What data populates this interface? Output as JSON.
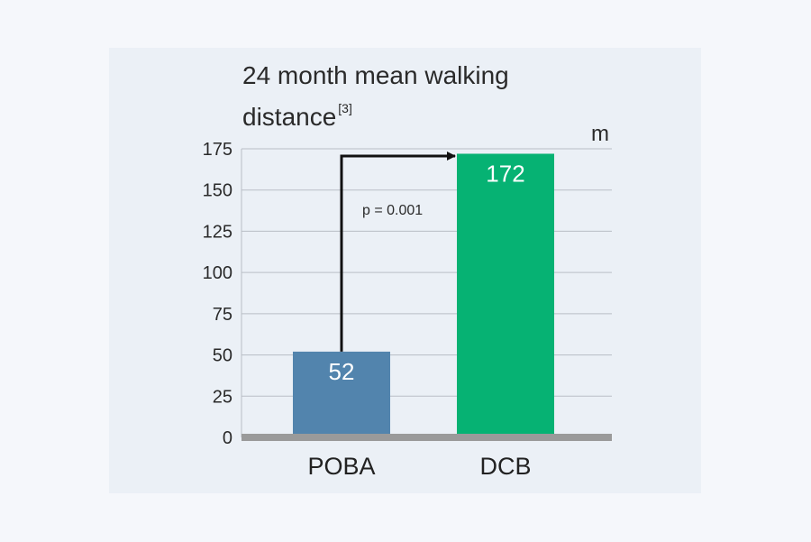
{
  "chart_data": {
    "type": "bar",
    "title": "24 month mean walking distance",
    "title_line1": "24 month mean walking",
    "title_line2": "distance",
    "reference": "[3]",
    "unit": "m",
    "categories": [
      "POBA",
      "DCB"
    ],
    "values": [
      52,
      172
    ],
    "value_labels": [
      "52",
      "172"
    ],
    "colors": [
      "#5284ad",
      "#06b273"
    ],
    "ylim": [
      0,
      175
    ],
    "yticks": [
      0,
      25,
      50,
      75,
      100,
      125,
      150,
      175
    ],
    "grid": true,
    "annotation": "p = 0.001"
  }
}
